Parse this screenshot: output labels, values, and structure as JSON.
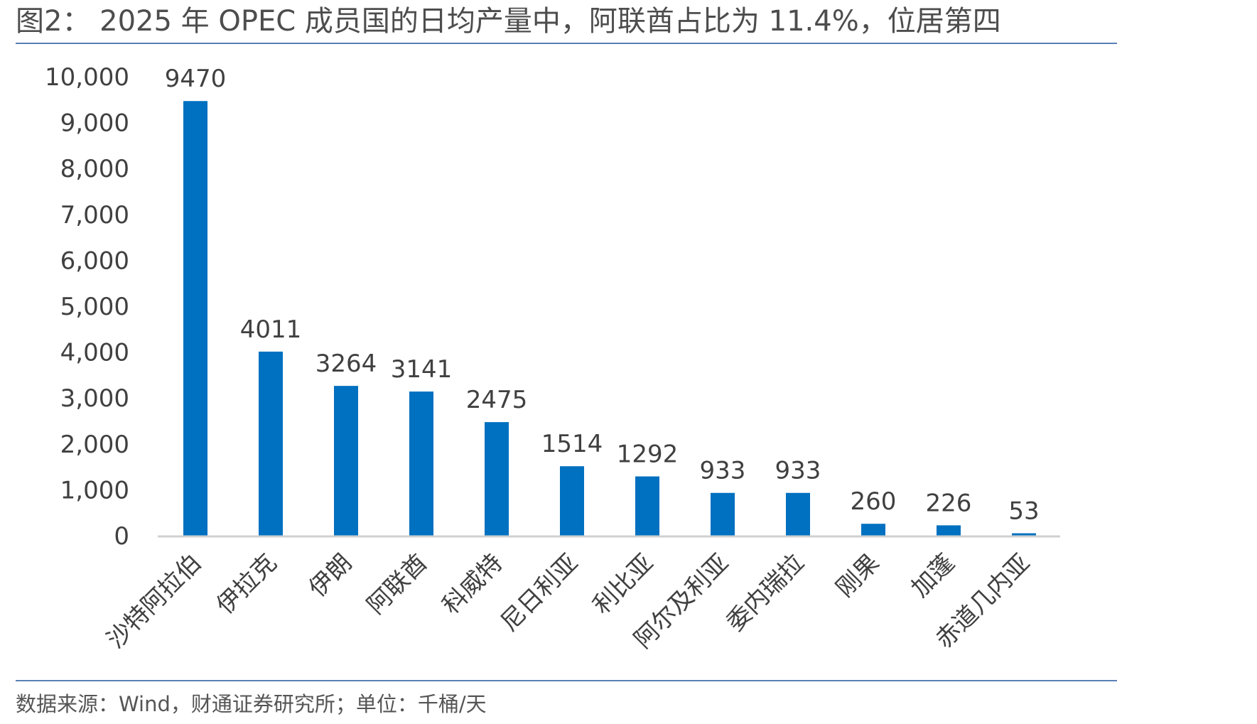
{
  "figure": {
    "title": "图2： 2025 年 OPEC 成员国的日均产量中，阿联酋占比为 11.4%，位居第四",
    "source": "数据来源：Wind，财通证券研究所；单位：千桶/天"
  },
  "colors": {
    "bar": "#0070C0",
    "axis": "#d0d0d0",
    "rule": "#5a7fb5",
    "text": "#404040"
  },
  "chart_data": {
    "type": "bar",
    "categories": [
      "沙特阿拉伯",
      "伊拉克",
      "伊朗",
      "阿联酋",
      "科威特",
      "尼日利亚",
      "利比亚",
      "阿尔及利亚",
      "委内瑞拉",
      "刚果",
      "加蓬",
      "赤道几内亚"
    ],
    "values": [
      9470,
      4011,
      3264,
      3141,
      2475,
      1514,
      1292,
      933,
      933,
      260,
      226,
      53
    ],
    "data_labels": [
      "9470",
      "4011",
      "3264",
      "3141",
      "2475",
      "1514",
      "1292",
      "933",
      "933",
      "260",
      "226",
      "53"
    ],
    "yticks": [
      0,
      1000,
      2000,
      3000,
      4000,
      5000,
      6000,
      7000,
      8000,
      9000,
      10000
    ],
    "ytick_labels": [
      "0",
      "1,000",
      "2,000",
      "3,000",
      "4,000",
      "5,000",
      "6,000",
      "7,000",
      "8,000",
      "9,000",
      "10,000"
    ],
    "ylim": [
      0,
      10000
    ],
    "xlabel": "",
    "ylabel": "",
    "grid": false,
    "legend": "none",
    "x_label_rotation": "-45"
  }
}
